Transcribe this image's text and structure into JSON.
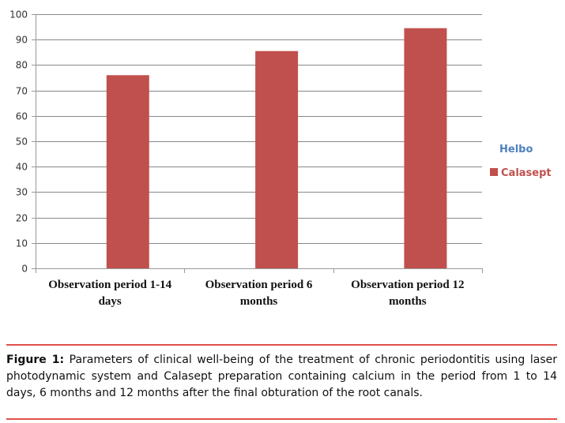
{
  "chart_data": {
    "type": "bar",
    "categories": [
      [
        "Observation period 1-14",
        "days"
      ],
      [
        "Observation period 6",
        "months"
      ],
      [
        "Observation period 12",
        "months"
      ]
    ],
    "series": [
      {
        "name": "Helbo",
        "values": [
          null,
          null,
          null
        ],
        "color": "#4f81bd"
      },
      {
        "name": "Calasept",
        "values": [
          76,
          85.5,
          94.5
        ],
        "color": "#c0504d"
      }
    ],
    "yticks": [
      "0",
      "10",
      "20",
      "30",
      "40",
      "50",
      "60",
      "70",
      "80",
      "90",
      "100"
    ],
    "ylim": [
      0,
      100
    ],
    "grid": true,
    "legend": "right"
  },
  "caption": {
    "label": "Figure 1:",
    "text": "Parameters of clinical well-being of the treatment of chronic periodontitis using laser photodynamic system and Calasept preparation containing calcium in the period from 1 to 14 days, 6 months and 12 months after the final obturation of the root canals."
  },
  "colors": {
    "rule": "#e0504a",
    "grid": "#888888",
    "axis": "#999999"
  }
}
